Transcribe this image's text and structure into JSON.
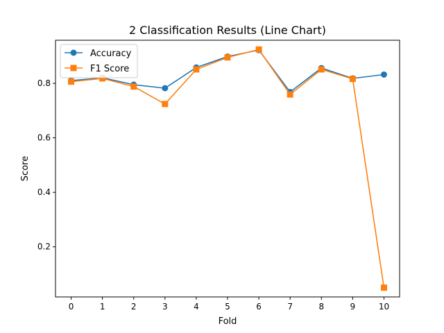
{
  "chart_data": {
    "type": "line",
    "title": "2 Classification Results (Line Chart)",
    "xlabel": "Fold",
    "ylabel": "Score",
    "x": [
      0,
      1,
      2,
      3,
      4,
      5,
      6,
      7,
      8,
      9,
      10
    ],
    "xlim": [
      -0.5,
      10.5
    ],
    "ylim": [
      0.016,
      0.958
    ],
    "yticks": [
      0.2,
      0.4,
      0.6,
      0.8
    ],
    "grid": false,
    "legend_position": "upper-left",
    "series": [
      {
        "name": "Accuracy",
        "color": "#1f77b4",
        "marker": "circle",
        "values": [
          0.81,
          0.82,
          0.795,
          0.782,
          0.858,
          0.898,
          0.922,
          0.768,
          0.856,
          0.818,
          0.832
        ]
      },
      {
        "name": "F1 Score",
        "color": "#ff7f0e",
        "marker": "square",
        "values": [
          0.806,
          0.818,
          0.788,
          0.724,
          0.851,
          0.895,
          0.924,
          0.759,
          0.851,
          0.816,
          0.05
        ]
      }
    ]
  }
}
